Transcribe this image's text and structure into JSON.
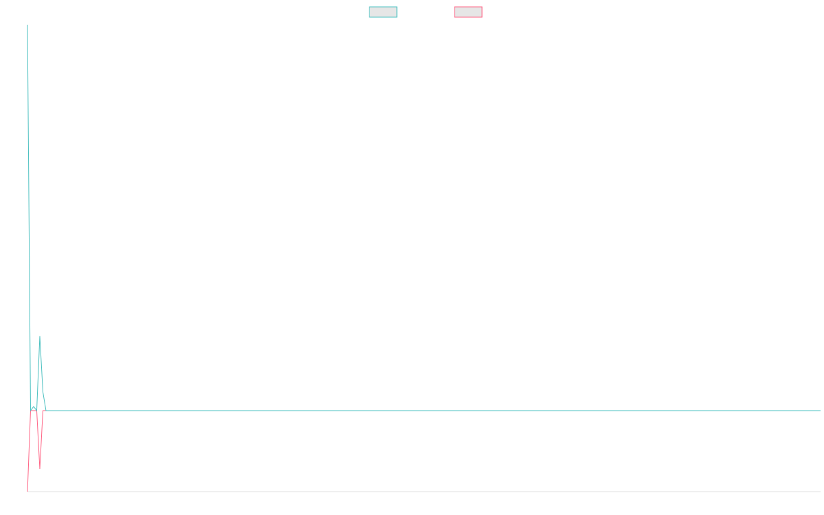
{
  "chart_data": {
    "type": "line",
    "x": [
      0,
      1,
      2,
      3,
      4,
      5,
      6,
      257
    ],
    "xlim": [
      0,
      257
    ],
    "ylim": [
      -1,
      4.76
    ],
    "legend": "top",
    "series": [
      {
        "color": "#4bc0c0",
        "values": [
          4.76,
          0,
          0.05,
          0,
          0.92,
          0.23,
          0,
          0
        ]
      },
      {
        "color": "#ff6384",
        "values": [
          -1,
          0,
          0,
          0,
          -0.72,
          0,
          0,
          0
        ]
      }
    ]
  }
}
